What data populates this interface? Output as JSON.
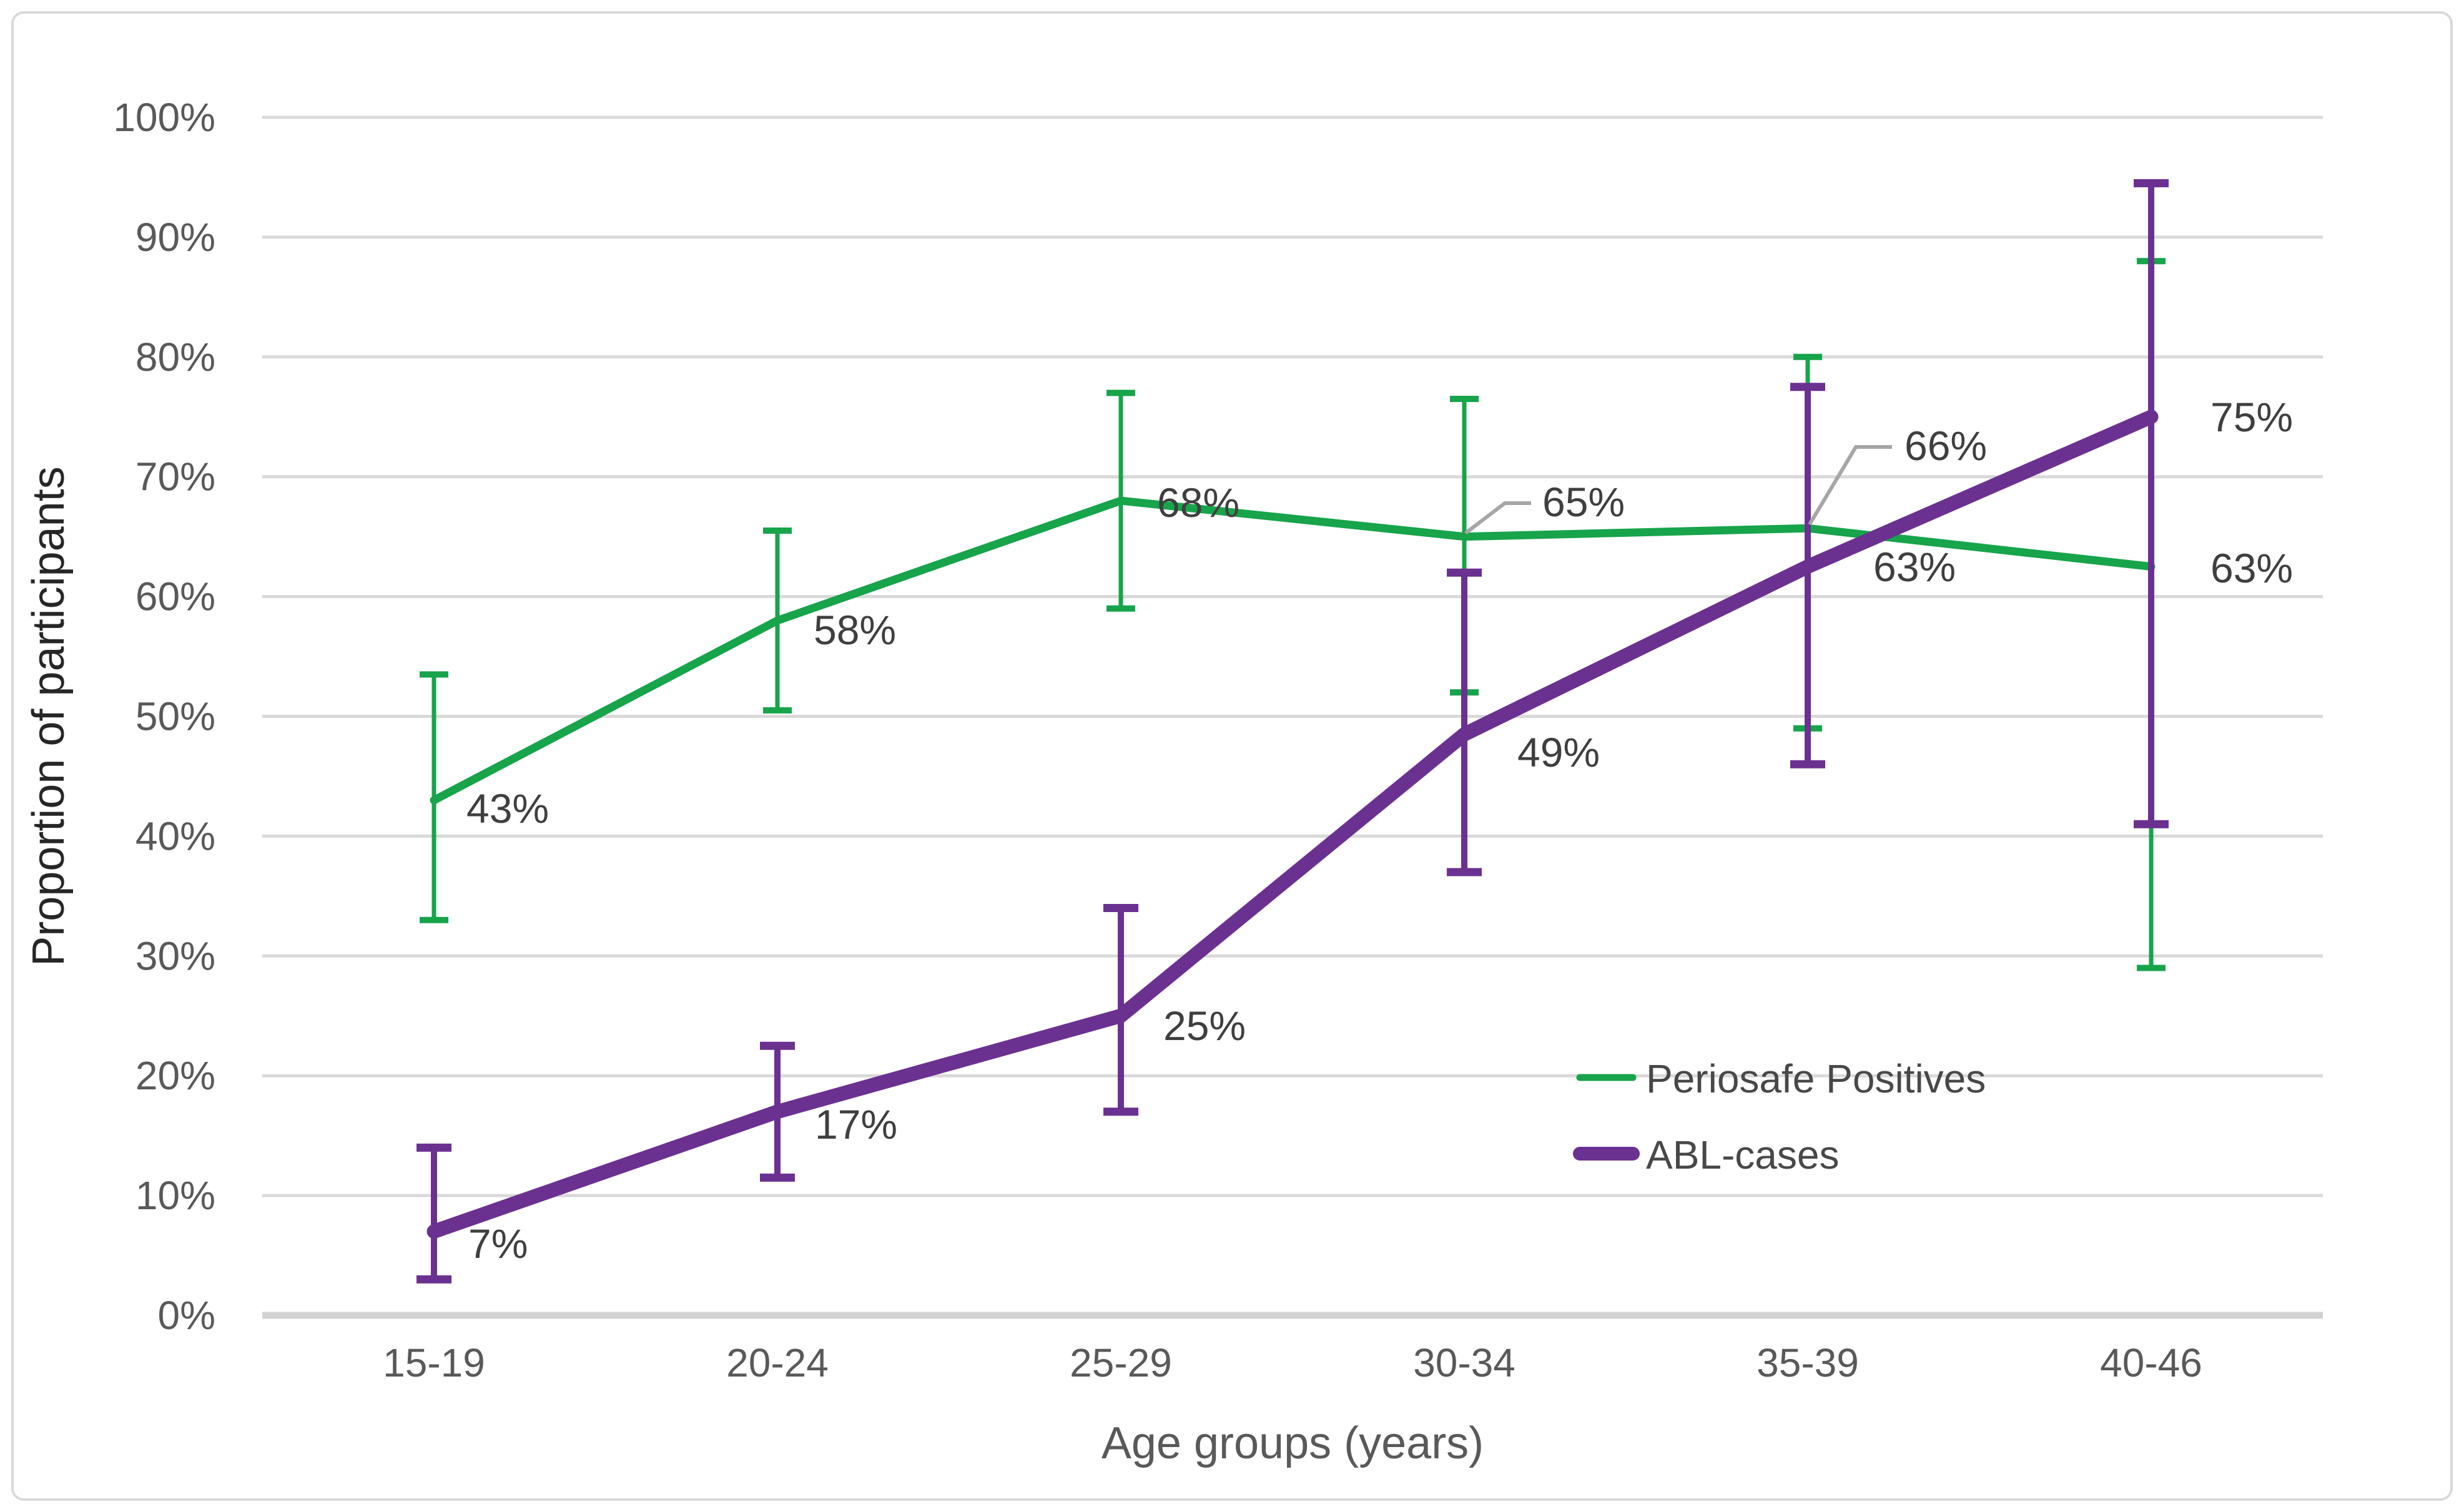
{
  "page": {
    "background": "#FFFFFF",
    "border_color": "#D9D9D9"
  },
  "chart_data": {
    "type": "line",
    "title": "",
    "xlabel": "Age groups (years)",
    "ylabel": "Proportion of participants",
    "categories": [
      "15-19",
      "20-24",
      "25-29",
      "30-34",
      "35-39",
      "40-46"
    ],
    "ylim": [
      0,
      100
    ],
    "ytick_step": 10,
    "ytick_labels": [
      "0%",
      "10%",
      "20%",
      "30%",
      "40%",
      "50%",
      "60%",
      "70%",
      "80%",
      "90%",
      "100%"
    ],
    "grid": true,
    "legend_position": "middle-right-inside",
    "colors": {
      "grid": "#D9D9D9",
      "axis_line": "#D2D2D2",
      "tick_text": "#595959",
      "axis_title_text": "#595959",
      "y_axis_title_text": "#262626",
      "data_label_text": "#3F3F3F",
      "legend_text": "#484848",
      "leader_line": "#A6A6A6"
    },
    "series": [
      {
        "name": "Periosafe Positives",
        "color": "#17A44B",
        "values": [
          43,
          58,
          68,
          65,
          66,
          63
        ],
        "data_labels": [
          "43%",
          "58%",
          "68%",
          "65%",
          "66%",
          "63%"
        ],
        "plotted_values": [
          43,
          58,
          68,
          65,
          65.7,
          62.5
        ],
        "error_low": [
          33,
          50.5,
          59,
          52,
          49,
          29
        ],
        "error_high": [
          53.5,
          65.5,
          77,
          76.5,
          80,
          88
        ],
        "callout_label_indices": [
          3,
          4
        ]
      },
      {
        "name": "ABL-cases",
        "color": "#6B3191",
        "values": [
          7,
          17,
          25,
          49,
          63,
          75
        ],
        "data_labels": [
          "7%",
          "17%",
          "25%",
          "49%",
          "63%",
          "75%"
        ],
        "plotted_values": [
          7,
          17,
          25,
          48.5,
          62.5,
          75
        ],
        "error_low": [
          3,
          11.5,
          17,
          37,
          46,
          41
        ],
        "error_high": [
          14,
          22.5,
          34,
          62,
          77.5,
          94.5
        ],
        "callout_label_indices": []
      }
    ]
  }
}
